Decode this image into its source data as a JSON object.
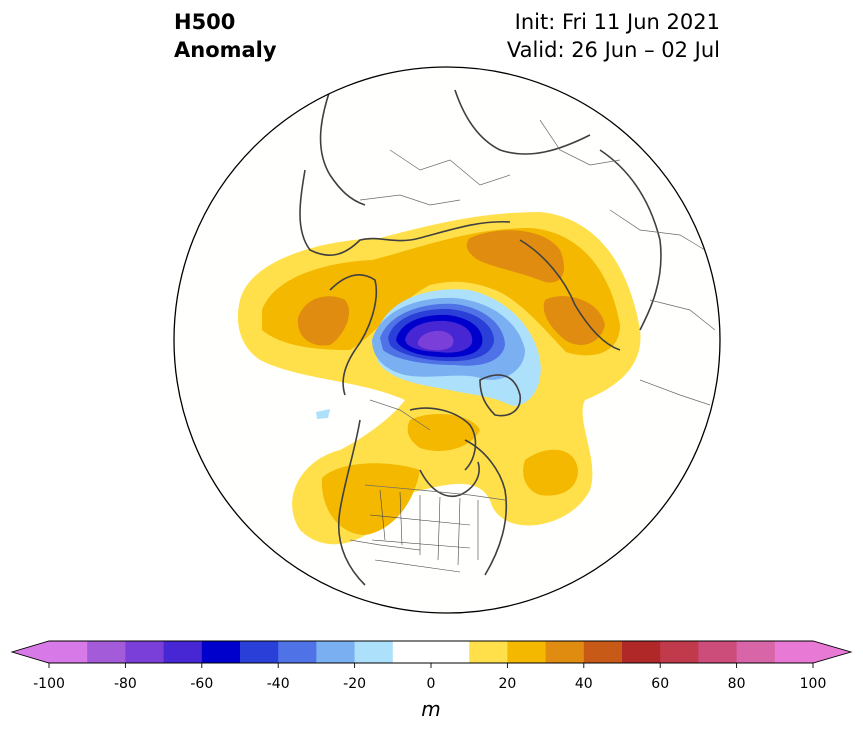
{
  "header": {
    "title_line1": "H500",
    "title_line2": "Anomaly",
    "init_text": "Init: Fri 11 Jun 2021",
    "valid_text": "Valid: 26 Jun – 02 Jul"
  },
  "map": {
    "projection": "north-polar-stereographic",
    "features": [
      "coastlines",
      "country-borders",
      "us-state-borders"
    ],
    "anomalies": [
      {
        "region": "Arctic / Canadian Archipelago",
        "sign": "negative",
        "peak_m": -80
      },
      {
        "region": "Scandinavia / Eastern Europe",
        "sign": "positive",
        "peak_m": 40
      },
      {
        "region": "Western Russia",
        "sign": "positive",
        "peak_m": 40
      },
      {
        "region": "Northeastern Siberia",
        "sign": "positive",
        "peak_m": 40
      },
      {
        "region": "Western North America",
        "sign": "positive",
        "peak_m": 30
      },
      {
        "region": "Central Canada / Hudson Bay",
        "sign": "positive",
        "peak_m": 20
      },
      {
        "region": "Western North Atlantic",
        "sign": "positive",
        "peak_m": 30
      }
    ]
  },
  "colorbar": {
    "unit": "m",
    "min": -100,
    "max": 100,
    "step": 10,
    "tick_labels": [
      "-100",
      "-80",
      "-60",
      "-40",
      "-20",
      "0",
      "20",
      "40",
      "60",
      "80",
      "100"
    ],
    "colors": [
      "#d879e8",
      "#a35bd9",
      "#7a3fd9",
      "#4726d4",
      "#0000cc",
      "#2a3fd8",
      "#4f72e6",
      "#7ab0f2",
      "#ade0fb",
      "#ffffff",
      "#ffffff",
      "#ffe04a",
      "#f4b800",
      "#e08c10",
      "#c85a18",
      "#b02828",
      "#c03a4c",
      "#cc4c7a",
      "#d865a8",
      "#e87ad6"
    ],
    "extend_min_color": "#d879e8",
    "extend_max_color": "#e87ad6"
  }
}
